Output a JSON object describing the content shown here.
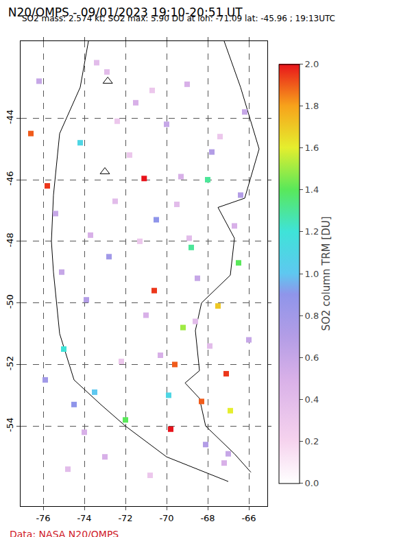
{
  "chart_data": {
    "type": "scatter",
    "title": "N20/OMPS - 09/01/2023 19:10-20:51 UT",
    "subtitle": "SO2 mass: 2.574 kt; SO2 max: 5.90 DU at lon: -71.09 lat: -45.96 ; 19:13UTC",
    "source": "Data: NASA N20/OMPS",
    "colorbar_title": "SO2 column TRM [DU]",
    "colorbar_range": [
      0,
      2
    ],
    "colorbar_ticks": [
      {
        "value": 0,
        "label": "0.0"
      },
      0.2,
      0.4,
      0.6,
      0.8,
      {
        "value": 1,
        "label": "1.0"
      },
      1.2,
      1.4,
      1.6,
      1.8,
      {
        "value": 2,
        "label": "2.0"
      }
    ],
    "xlim": [
      -77.1,
      -65.1
    ],
    "ylim": [
      -56.6,
      -41.5
    ],
    "xticks": [
      -76,
      -74,
      -72,
      -70,
      -68,
      -66
    ],
    "yticks": [
      -54,
      -52,
      -50,
      -48,
      -46,
      -44
    ],
    "grid": true,
    "marker": "square",
    "points": {
      "lon": [
        -71.09,
        -75.8,
        -76.6,
        -70.6,
        -69.6,
        -68.3,
        -69.8,
        -67.1,
        -67.5,
        -68.8,
        -69.2,
        -72.0,
        -73.5,
        -75.0,
        -74.2,
        -70.5,
        -68.0,
        -66.5,
        -66.9,
        -72.8,
        -73.9,
        -76.2,
        -75.4,
        -71.5,
        -70.0,
        -69.0,
        -67.8,
        -66.2,
        -72.5,
        -71.0,
        -69.5,
        -68.5,
        -74.5,
        -73.0,
        -70.8,
        -67.2,
        -66.0,
        -75.9,
        -74.8,
        -72.2,
        -69.9,
        -68.1,
        -66.7,
        -73.4,
        -71.8,
        -70.3,
        -68.9,
        -67.4,
        -75.1,
        -72.9,
        -71.3,
        -69.3,
        -67.9,
        -66.4,
        -74.0,
        -70.7,
        -68.6,
        -67.0,
        -72.4,
        -73.7
      ],
      "lat": [
        -45.96,
        -46.2,
        -44.5,
        -49.6,
        -52.0,
        -53.2,
        -54.1,
        -52.3,
        -50.1,
        -48.2,
        -50.8,
        -53.8,
        -52.9,
        -51.5,
        -44.8,
        -47.3,
        -46.0,
        -48.7,
        -53.5,
        -48.5,
        -49.9,
        -42.8,
        -47.1,
        -43.5,
        -44.2,
        -42.9,
        -45.1,
        -43.8,
        -46.7,
        -50.4,
        -46.8,
        -49.2,
        -53.3,
        -55.0,
        -55.6,
        -55.2,
        -51.2,
        -52.5,
        -55.4,
        -51.9,
        -53.0,
        -54.6,
        -47.5,
        -42.2,
        -45.2,
        -51.7,
        -47.9,
        -44.6,
        -49.0,
        -42.5,
        -48.0,
        -45.9,
        -51.4,
        -46.5,
        -54.2,
        -43.1,
        -50.6,
        -54.9,
        -44.1,
        -47.8
      ],
      "values": [
        5.9,
        1.95,
        1.9,
        1.95,
        1.9,
        1.9,
        2.0,
        1.95,
        1.7,
        1.3,
        1.5,
        1.4,
        1.0,
        1.2,
        1.1,
        0.9,
        1.3,
        1.4,
        1.6,
        0.8,
        0.7,
        0.6,
        0.6,
        0.5,
        0.6,
        0.5,
        0.7,
        0.6,
        0.4,
        0.5,
        0.4,
        0.6,
        0.9,
        0.5,
        0.3,
        0.5,
        0.6,
        0.8,
        0.4,
        0.3,
        1.1,
        0.7,
        0.5,
        0.4,
        0.3,
        0.5,
        0.4,
        0.3,
        0.6,
        0.4,
        0.3,
        0.5,
        0.4,
        0.7,
        0.5,
        0.3,
        0.4,
        0.6,
        0.3,
        0.5
      ]
    },
    "coastlines": [
      {
        "lon": [
          -67.2,
          -66.4,
          -65.5,
          -66.2,
          -67.5,
          -66.7,
          -66.9,
          -68.3,
          -68.6,
          -68.4,
          -69.1,
          -68.4,
          -68.1,
          -66.7,
          -65.9
        ],
        "lat": [
          -41.5,
          -43.0,
          -45.0,
          -46.6,
          -46.9,
          -47.9,
          -49.1,
          -50.0,
          -50.9,
          -52.2,
          -52.6,
          -53.1,
          -54.0,
          -54.9,
          -55.5
        ]
      },
      {
        "lon": [
          -73.8,
          -74.2,
          -75.2,
          -75.5,
          -75.6,
          -75.5,
          -75.2,
          -74.5,
          -73.2,
          -72.0,
          -70.0,
          -68.5,
          -67.0
        ],
        "lat": [
          -41.5,
          -43.0,
          -44.5,
          -46.5,
          -48.0,
          -49.0,
          -51.0,
          -52.5,
          -53.3,
          -54.0,
          -55.0,
          -55.4,
          -55.8
        ]
      }
    ],
    "volcanoes": {
      "lon": [
        -72.86,
        -73.0
      ],
      "lat": [
        -42.8,
        -45.74
      ]
    }
  }
}
